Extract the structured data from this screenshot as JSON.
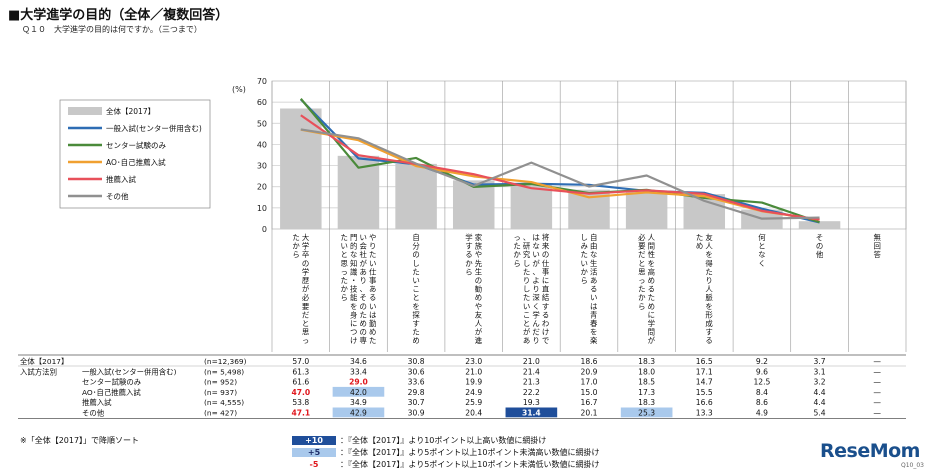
{
  "header": {
    "title": "■大学進学の目的（全体／複数回答）",
    "question": "Ｑ１０　大学進学の目的は何ですか。（三つまで）"
  },
  "chart_data": {
    "type": "bar+line",
    "ylabel": "(%)",
    "ylim": [
      0,
      70
    ],
    "yticks": [
      0,
      10,
      20,
      30,
      40,
      50,
      60,
      70
    ],
    "grid": true,
    "categories": [
      "大学卒の学歴が必要だと思ったから",
      "やりたい仕事あるいは勤めたい会社があり、そのための専門的な知識・技能を身につけたいと思ったから",
      "自分のしたいことを探すため",
      "家族や先生の勧めや友人が進学するから",
      "将来の仕事に直結するわけではないが、より深く学んだり、研究したりしたいことがあったから",
      "自由な生活あるいは青春を楽しみたいから",
      "人間性を高めるために学問が必要だと思ったから",
      "友人を得たり人脈を形成するため",
      "何となく",
      "その他",
      "無回答"
    ],
    "series": [
      {
        "name": "全体【2017】",
        "type": "bar",
        "color": "#c8c8c8",
        "n": "(n=12,369)",
        "values": [
          57.0,
          34.6,
          30.8,
          23.0,
          21.0,
          18.6,
          18.3,
          16.5,
          9.2,
          3.7,
          null
        ]
      },
      {
        "name": "一般入試(センター併用含む)",
        "type": "line",
        "color": "#2e6db4",
        "n": "(n=  5,498)",
        "values": [
          61.3,
          33.4,
          30.6,
          21.0,
          21.4,
          20.9,
          18.0,
          17.1,
          9.6,
          3.1,
          null
        ]
      },
      {
        "name": "センター試験のみ",
        "type": "line",
        "color": "#4a8a3a",
        "n": "(n=    952)",
        "values": [
          61.6,
          29.0,
          33.6,
          19.9,
          21.3,
          17.0,
          18.5,
          14.7,
          12.5,
          3.2,
          null
        ]
      },
      {
        "name": "AO･自己推薦入試",
        "type": "line",
        "color": "#f0a030",
        "n": "(n=    937)",
        "values": [
          47.0,
          42.0,
          29.8,
          24.9,
          22.2,
          15.0,
          17.3,
          15.5,
          8.4,
          4.4,
          null
        ]
      },
      {
        "name": "推薦入試",
        "type": "line",
        "color": "#e8505a",
        "n": "(n=  4,555)",
        "values": [
          53.8,
          34.9,
          30.7,
          25.9,
          19.3,
          16.7,
          18.3,
          16.6,
          8.6,
          4.4,
          null
        ]
      },
      {
        "name": "その他",
        "type": "line",
        "color": "#909090",
        "n": "(n=    427)",
        "values": [
          47.1,
          42.9,
          30.9,
          20.4,
          31.4,
          20.1,
          25.3,
          13.3,
          4.9,
          5.4,
          null
        ]
      }
    ],
    "table": {
      "group_label": "入試方法別",
      "empty_mark": "—",
      "highlights": [
        {
          "row": 2,
          "col": 1,
          "style": "red"
        },
        {
          "row": 3,
          "col": 0,
          "style": "red"
        },
        {
          "row": 3,
          "col": 1,
          "style": "light"
        },
        {
          "row": 5,
          "col": 0,
          "style": "red"
        },
        {
          "row": 5,
          "col": 1,
          "style": "light"
        },
        {
          "row": 5,
          "col": 4,
          "style": "dark"
        },
        {
          "row": 5,
          "col": 6,
          "style": "light"
        }
      ]
    }
  },
  "footnote": "※「全体【2017】」で降順ソート",
  "key": [
    {
      "mark": "+10",
      "style": "dark",
      "text": "：『全体【2017】』より10ポイント以上高い数値に網掛け"
    },
    {
      "mark": "+5",
      "style": "light",
      "text": "：『全体【2017】』より5ポイント以上10ポイント未満高い数値に網掛け"
    },
    {
      "mark": "-5",
      "style": "red",
      "text": "：『全体【2017】』より5ポイント以上10ポイント未満低い数値に網掛け"
    }
  ],
  "brand": {
    "logo_main": "ReseMom",
    "logo_sub": "Q10_03"
  }
}
